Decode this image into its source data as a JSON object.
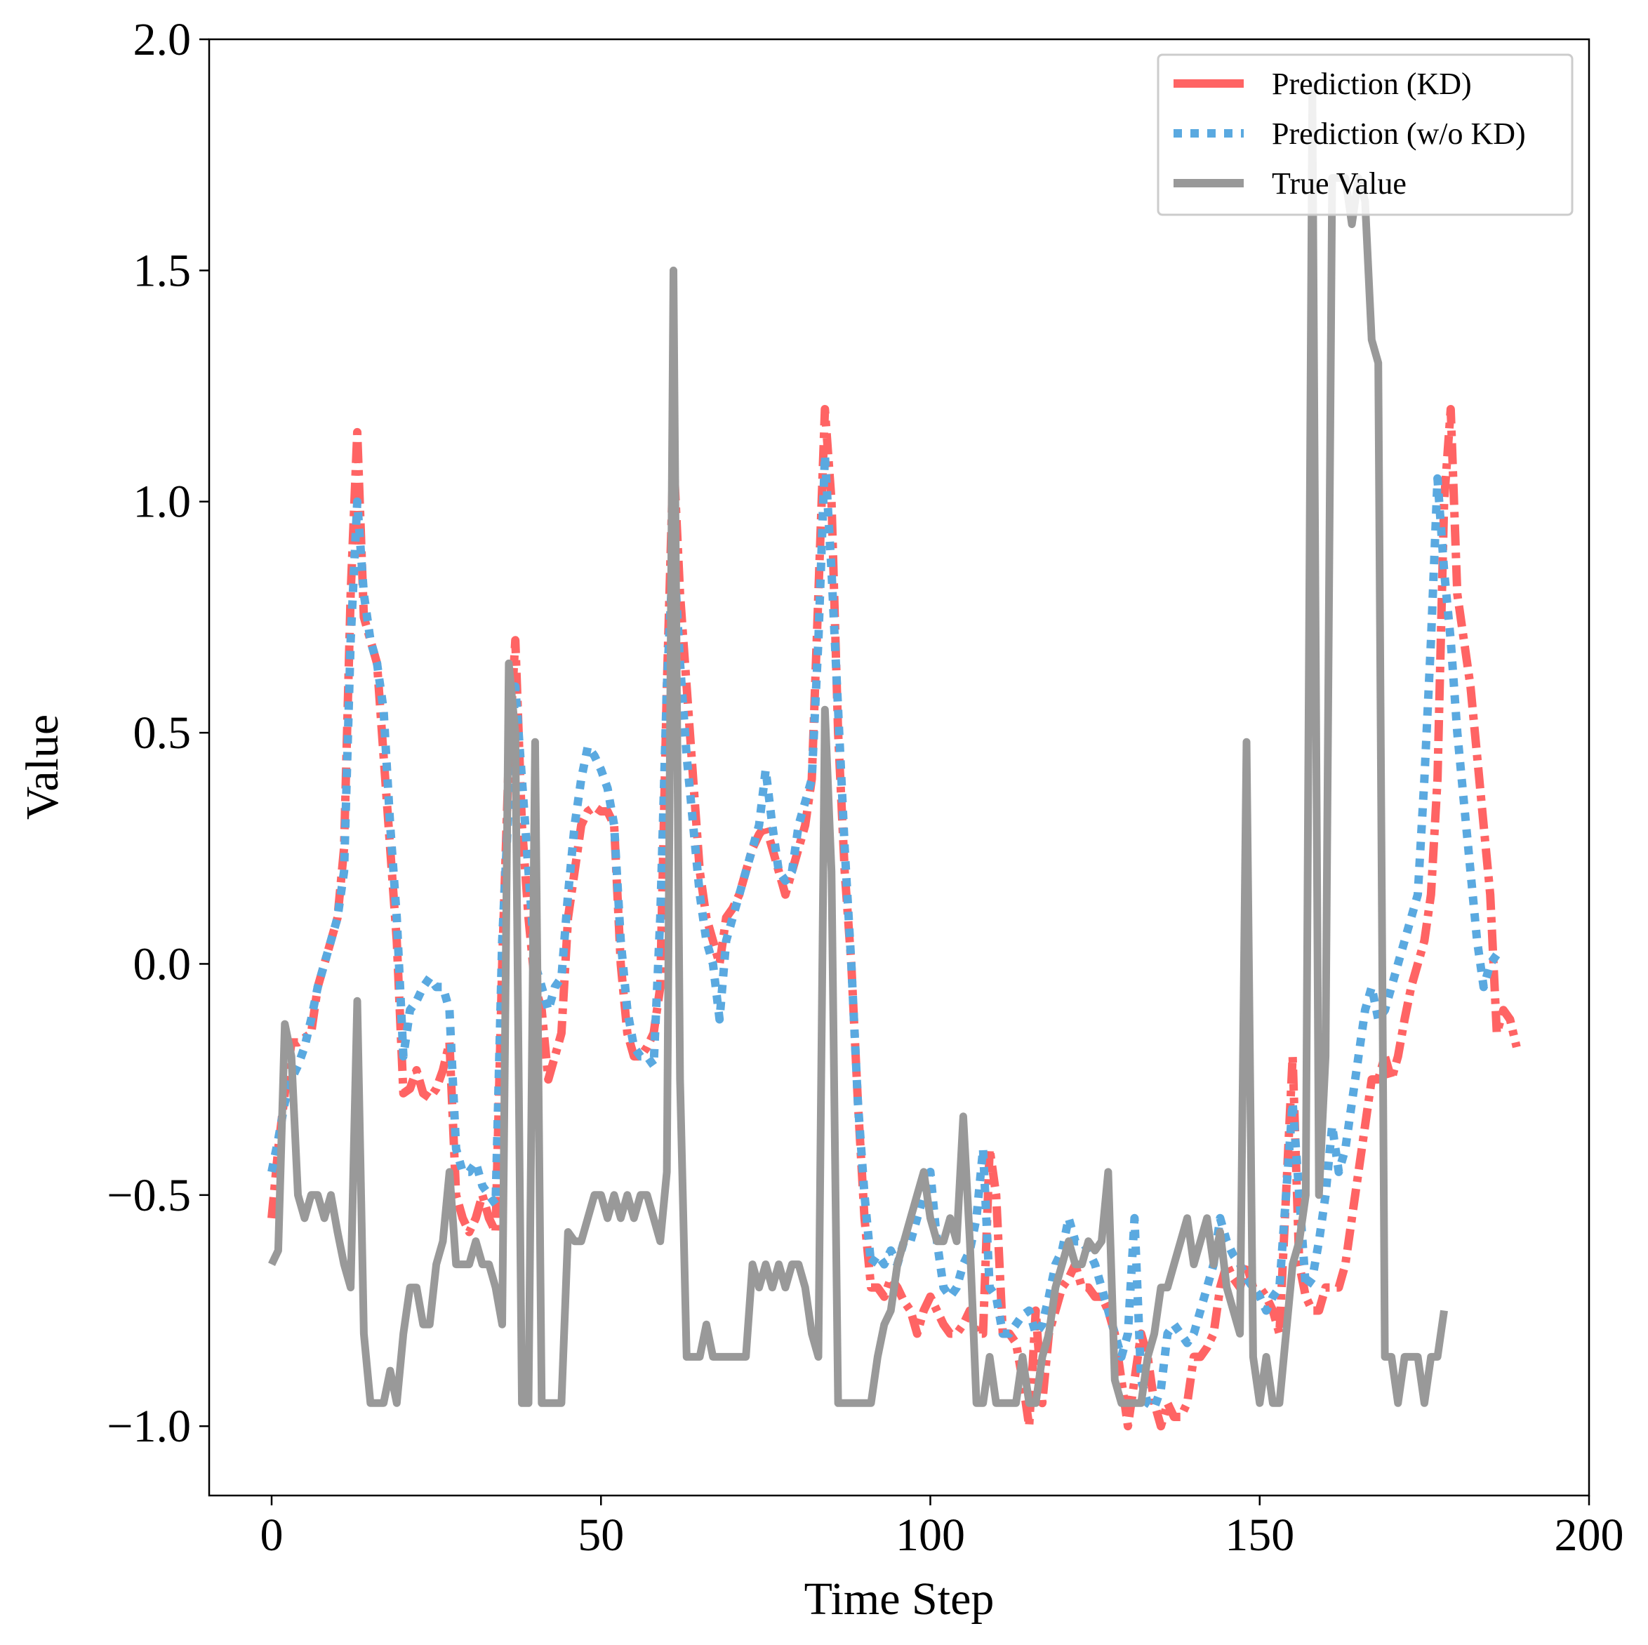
{
  "colors": {
    "kd": "#ff6464",
    "wokd": "#5aa9e0",
    "true": "#999999",
    "axis": "#000000",
    "background": "#ffffff",
    "legend_border": "#cccccc"
  },
  "chart_data": {
    "type": "line",
    "title": "",
    "xlabel": "Time Step",
    "ylabel": "Value",
    "xlim": [
      -10,
      200
    ],
    "ylim": [
      -1.15,
      2.0
    ],
    "xticks": [
      0,
      50,
      100,
      150,
      200
    ],
    "xtick_labels": [
      "0",
      "50",
      "100",
      "150",
      "200"
    ],
    "yticks": [
      -1.0,
      -0.5,
      0.0,
      0.5,
      1.0,
      1.5,
      2.0
    ],
    "ytick_labels": [
      "−1.0",
      "−0.5",
      "0.0",
      "0.5",
      "1.0",
      "1.5",
      "2.0"
    ],
    "grid": false,
    "legend_position": "top-right",
    "series": [
      {
        "key": "kd",
        "name": "Prediction (KD)",
        "style": "dashdot",
        "values": [
          -0.55,
          -0.4,
          -0.28,
          -0.17,
          -0.17,
          -0.16,
          -0.15,
          -0.05,
          0.0,
          0.05,
          0.1,
          0.25,
          0.8,
          1.15,
          0.75,
          0.7,
          0.65,
          0.45,
          0.25,
          0.05,
          -0.28,
          -0.27,
          -0.23,
          -0.28,
          -0.29,
          -0.27,
          -0.23,
          -0.17,
          -0.5,
          -0.55,
          -0.58,
          -0.55,
          -0.5,
          -0.55,
          -0.58,
          0.0,
          0.45,
          0.7,
          0.3,
          0.1,
          -0.05,
          -0.1,
          -0.25,
          -0.2,
          -0.15,
          0.1,
          0.2,
          0.3,
          0.33,
          0.34,
          0.33,
          0.33,
          0.3,
          0.0,
          -0.15,
          -0.2,
          -0.2,
          -0.18,
          -0.15,
          -0.05,
          0.6,
          1.1,
          0.8,
          0.6,
          0.4,
          0.2,
          0.1,
          0.05,
          0.0,
          0.1,
          0.12,
          0.15,
          0.2,
          0.25,
          0.28,
          0.3,
          0.25,
          0.2,
          0.15,
          0.2,
          0.25,
          0.3,
          0.4,
          0.8,
          1.2,
          1.0,
          0.5,
          0.2,
          0.0,
          -0.3,
          -0.55,
          -0.7,
          -0.7,
          -0.72,
          -0.68,
          -0.7,
          -0.73,
          -0.75,
          -0.8,
          -0.75,
          -0.72,
          -0.75,
          -0.78,
          -0.8,
          -0.8,
          -0.78,
          -0.75,
          -0.8,
          -0.8,
          -0.4,
          -0.5,
          -0.8,
          -0.8,
          -0.82,
          -0.9,
          -1.0,
          -0.75,
          -0.95,
          -0.8,
          -0.75,
          -0.7,
          -0.68,
          -0.65,
          -0.7,
          -0.7,
          -0.72,
          -0.72,
          -0.75,
          -0.8,
          -0.9,
          -1.0,
          -0.9,
          -0.8,
          -0.85,
          -0.95,
          -1.0,
          -0.95,
          -0.98,
          -0.98,
          -0.95,
          -0.85,
          -0.85,
          -0.83,
          -0.8,
          -0.7,
          -0.65,
          -0.68,
          -0.7,
          -0.65,
          -0.7,
          -0.7,
          -0.72,
          -0.75,
          -0.8,
          -0.5,
          -0.2,
          -0.65,
          -0.72,
          -0.75,
          -0.75,
          -0.7,
          -0.7,
          -0.7,
          -0.65,
          -0.55,
          -0.45,
          -0.35,
          -0.25,
          -0.25,
          -0.2,
          -0.25,
          -0.2,
          -0.12,
          -0.05,
          0.0,
          0.05,
          0.15,
          0.4,
          1.0,
          1.2,
          0.8,
          0.7,
          0.6,
          0.45,
          0.3,
          0.15,
          -0.15,
          -0.1,
          -0.12,
          -0.18
        ]
      },
      {
        "key": "wokd",
        "name": "Prediction (w/o KD)",
        "style": "dotted",
        "values": [
          -0.45,
          -0.38,
          -0.3,
          -0.25,
          -0.22,
          -0.18,
          -0.12,
          -0.05,
          0.0,
          0.05,
          0.1,
          0.2,
          0.7,
          1.0,
          0.8,
          0.7,
          0.65,
          0.55,
          0.3,
          0.1,
          -0.2,
          -0.1,
          -0.08,
          -0.05,
          -0.03,
          -0.05,
          -0.05,
          -0.1,
          -0.4,
          -0.45,
          -0.45,
          -0.43,
          -0.48,
          -0.5,
          -0.52,
          0.05,
          0.35,
          0.6,
          0.4,
          0.2,
          0.0,
          -0.05,
          -0.1,
          -0.05,
          -0.03,
          0.15,
          0.3,
          0.4,
          0.47,
          0.45,
          0.42,
          0.38,
          0.3,
          0.05,
          -0.1,
          -0.18,
          -0.2,
          -0.2,
          -0.22,
          0.1,
          0.6,
          0.9,
          0.65,
          0.45,
          0.3,
          0.15,
          0.05,
          0.0,
          -0.12,
          0.05,
          0.1,
          0.15,
          0.2,
          0.25,
          0.3,
          0.42,
          0.3,
          0.2,
          0.18,
          0.2,
          0.3,
          0.35,
          0.4,
          0.7,
          1.1,
          0.85,
          0.55,
          0.25,
          0.0,
          -0.3,
          -0.5,
          -0.65,
          -0.63,
          -0.65,
          -0.62,
          -0.65,
          -0.6,
          -0.6,
          -0.55,
          -0.5,
          -0.45,
          -0.6,
          -0.7,
          -0.72,
          -0.7,
          -0.65,
          -0.62,
          -0.55,
          -0.4,
          -0.7,
          -0.72,
          -0.8,
          -0.8,
          -0.78,
          -0.76,
          -0.75,
          -0.8,
          -0.78,
          -0.72,
          -0.65,
          -0.62,
          -0.55,
          -0.6,
          -0.6,
          -0.62,
          -0.65,
          -0.7,
          -0.75,
          -0.8,
          -0.85,
          -0.8,
          -0.55,
          -0.9,
          -0.95,
          -0.96,
          -0.92,
          -0.8,
          -0.78,
          -0.8,
          -0.82,
          -0.8,
          -0.75,
          -0.7,
          -0.65,
          -0.55,
          -0.6,
          -0.63,
          -0.65,
          -0.68,
          -0.7,
          -0.72,
          -0.75,
          -0.72,
          -0.7,
          -0.5,
          -0.3,
          -0.5,
          -0.7,
          -0.68,
          -0.6,
          -0.5,
          -0.35,
          -0.45,
          -0.4,
          -0.3,
          -0.2,
          -0.1,
          -0.05,
          -0.12,
          -0.1,
          -0.05,
          0.0,
          0.05,
          0.1,
          0.15,
          0.4,
          0.7,
          1.05,
          0.85,
          0.7,
          0.5,
          0.35,
          0.2,
          0.05,
          -0.05,
          0.0,
          0.02
        ]
      },
      {
        "key": "true",
        "name": "True Value",
        "style": "solid",
        "values": [
          -0.65,
          -0.62,
          -0.13,
          -0.2,
          -0.5,
          -0.55,
          -0.5,
          -0.5,
          -0.55,
          -0.5,
          -0.58,
          -0.65,
          -0.7,
          -0.08,
          -0.8,
          -0.95,
          -0.95,
          -0.95,
          -0.88,
          -0.95,
          -0.8,
          -0.7,
          -0.7,
          -0.78,
          -0.78,
          -0.65,
          -0.6,
          -0.45,
          -0.65,
          -0.65,
          -0.65,
          -0.6,
          -0.65,
          -0.65,
          -0.7,
          -0.78,
          0.65,
          0.5,
          -0.95,
          -0.95,
          0.48,
          -0.95,
          -0.95,
          -0.95,
          -0.95,
          -0.58,
          -0.6,
          -0.6,
          -0.55,
          -0.5,
          -0.5,
          -0.55,
          -0.5,
          -0.55,
          -0.5,
          -0.55,
          -0.5,
          -0.5,
          -0.55,
          -0.6,
          -0.45,
          1.5,
          -0.25,
          -0.85,
          -0.85,
          -0.85,
          -0.78,
          -0.85,
          -0.85,
          -0.85,
          -0.85,
          -0.85,
          -0.85,
          -0.65,
          -0.7,
          -0.65,
          -0.7,
          -0.65,
          -0.7,
          -0.65,
          -0.65,
          -0.7,
          -0.8,
          -0.85,
          0.55,
          0.2,
          -0.95,
          -0.95,
          -0.95,
          -0.95,
          -0.95,
          -0.95,
          -0.85,
          -0.78,
          -0.75,
          -0.65,
          -0.6,
          -0.55,
          -0.5,
          -0.45,
          -0.55,
          -0.6,
          -0.6,
          -0.55,
          -0.6,
          -0.33,
          -0.6,
          -0.95,
          -0.95,
          -0.85,
          -0.95,
          -0.95,
          -0.95,
          -0.95,
          -0.85,
          -0.95,
          -0.95,
          -0.85,
          -0.8,
          -0.7,
          -0.65,
          -0.6,
          -0.65,
          -0.65,
          -0.6,
          -0.62,
          -0.6,
          -0.45,
          -0.9,
          -0.95,
          -0.95,
          -0.95,
          -0.95,
          -0.85,
          -0.8,
          -0.7,
          -0.7,
          -0.65,
          -0.6,
          -0.55,
          -0.65,
          -0.6,
          -0.55,
          -0.65,
          -0.58,
          -0.7,
          -0.75,
          -0.8,
          0.48,
          -0.85,
          -0.95,
          -0.85,
          -0.95,
          -0.95,
          -0.8,
          -0.65,
          -0.6,
          -0.5,
          1.9,
          -0.5,
          -0.2,
          1.7,
          1.7,
          1.7,
          1.6,
          1.7,
          1.65,
          1.35,
          1.3,
          -0.85,
          -0.85,
          -0.95,
          -0.85,
          -0.85,
          -0.85,
          -0.95,
          -0.85,
          -0.85,
          -0.75
        ]
      }
    ]
  }
}
